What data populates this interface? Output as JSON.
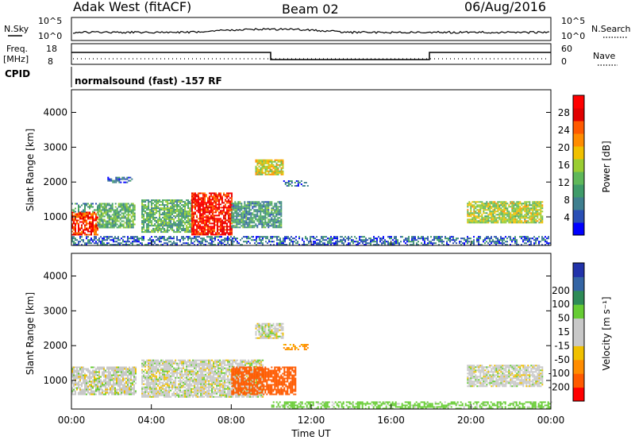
{
  "header": {
    "title_left": "Adak West (fitACF)",
    "title_center": "Beam 02",
    "date": "06/Aug/2016"
  },
  "top_panels": {
    "nsky_label": "N.Sky",
    "nsearch_label": "N.Search",
    "nsky_ticks": [
      "10^5",
      "10^0"
    ],
    "nsearch_ticks": [
      "10^5",
      "10^0"
    ],
    "freq_label_1": "Freq.",
    "freq_label_2": "[MHz]",
    "freq_ticks": [
      "18",
      "8"
    ],
    "nave_label": "Nave",
    "nave_ticks": [
      "60",
      "0"
    ],
    "cpid_label": "CPID",
    "cpid_text": "normalsound (fast) -157 RF"
  },
  "colors": {
    "frame": "#000000",
    "power_bar": [
      "#0000ff",
      "#2a4fb5",
      "#3f7f8f",
      "#3f9b6a",
      "#5fb85a",
      "#9acd32",
      "#f0c000",
      "#ff8c00",
      "#ff5a00",
      "#e00000",
      "#ff0000"
    ],
    "velocity_bar": [
      "#ff0000",
      "#ff5a00",
      "#ff8c00",
      "#f0c000",
      "#c8c8c8",
      "#c8c8c8",
      "#66cc33",
      "#2e8b57",
      "#3465a4",
      "#2233aa"
    ]
  },
  "chart_data": [
    {
      "type": "heatmap",
      "title": "",
      "xlabel": "Time UT",
      "ylabel": "Slant Range [km]",
      "x_ticks": [
        "00:00",
        "04:00",
        "08:00",
        "12:00",
        "16:00",
        "20:00",
        "00:00"
      ],
      "x_range_hours": [
        0,
        24
      ],
      "y_ticks": [
        1000,
        2000,
        3000,
        4000
      ],
      "ylim": [
        180,
        4650
      ],
      "colorbar_label": "Power [dB]",
      "colorbar_ticks": [
        4,
        8,
        12,
        16,
        20,
        24,
        28
      ],
      "colorbar_range": [
        0,
        32
      ],
      "regions": [
        {
          "t": [
            0.0,
            1.3
          ],
          "r": [
            500,
            1150
          ],
          "v": 26
        },
        {
          "t": [
            0.0,
            1.3
          ],
          "r": [
            1150,
            1400
          ],
          "v": 10
        },
        {
          "t": [
            1.3,
            3.2
          ],
          "r": [
            700,
            1400
          ],
          "v": 12
        },
        {
          "t": [
            3.5,
            6.0
          ],
          "r": [
            550,
            1500
          ],
          "v": 12
        },
        {
          "t": [
            6.0,
            8.0
          ],
          "r": [
            500,
            1700
          ],
          "v": 28
        },
        {
          "t": [
            8.0,
            10.5
          ],
          "r": [
            700,
            1450
          ],
          "v": 10
        },
        {
          "t": [
            9.2,
            10.6
          ],
          "r": [
            2200,
            2650
          ],
          "v": 18
        },
        {
          "t": [
            1.8,
            3.0
          ],
          "r": [
            2000,
            2150
          ],
          "v": 6
        },
        {
          "t": [
            10.6,
            11.8
          ],
          "r": [
            1900,
            2050
          ],
          "v": 6
        },
        {
          "t": [
            19.8,
            23.6
          ],
          "r": [
            850,
            1450
          ],
          "v": 16
        },
        {
          "t": [
            0.0,
            24.0
          ],
          "r": [
            200,
            450
          ],
          "v": 6
        }
      ]
    },
    {
      "type": "heatmap",
      "title": "",
      "xlabel": "Time UT",
      "ylabel": "Slant Range [km]",
      "x_ticks": [
        "00:00",
        "04:00",
        "08:00",
        "12:00",
        "16:00",
        "20:00",
        "00:00"
      ],
      "x_range_hours": [
        0,
        24
      ],
      "y_ticks": [
        1000,
        2000,
        3000,
        4000
      ],
      "ylim": [
        180,
        4650
      ],
      "colorbar_label": "Velocity [m s⁻¹]",
      "colorbar_ticks": [
        -200,
        -100,
        -50,
        -15,
        15,
        50,
        100,
        200
      ],
      "regions": [
        {
          "t": [
            0.0,
            3.2
          ],
          "r": [
            600,
            1400
          ],
          "v": 0
        },
        {
          "t": [
            3.5,
            9.6
          ],
          "r": [
            550,
            1600
          ],
          "v": 0
        },
        {
          "t": [
            8.0,
            11.2
          ],
          "r": [
            600,
            1400
          ],
          "v": -120
        },
        {
          "t": [
            9.2,
            10.6
          ],
          "r": [
            2200,
            2650
          ],
          "v": 0
        },
        {
          "t": [
            10.6,
            11.8
          ],
          "r": [
            1900,
            2050
          ],
          "v": -40
        },
        {
          "t": [
            19.8,
            23.6
          ],
          "r": [
            850,
            1450
          ],
          "v": 0
        },
        {
          "t": [
            10.0,
            24.0
          ],
          "r": [
            200,
            400
          ],
          "v": 30
        }
      ]
    }
  ]
}
